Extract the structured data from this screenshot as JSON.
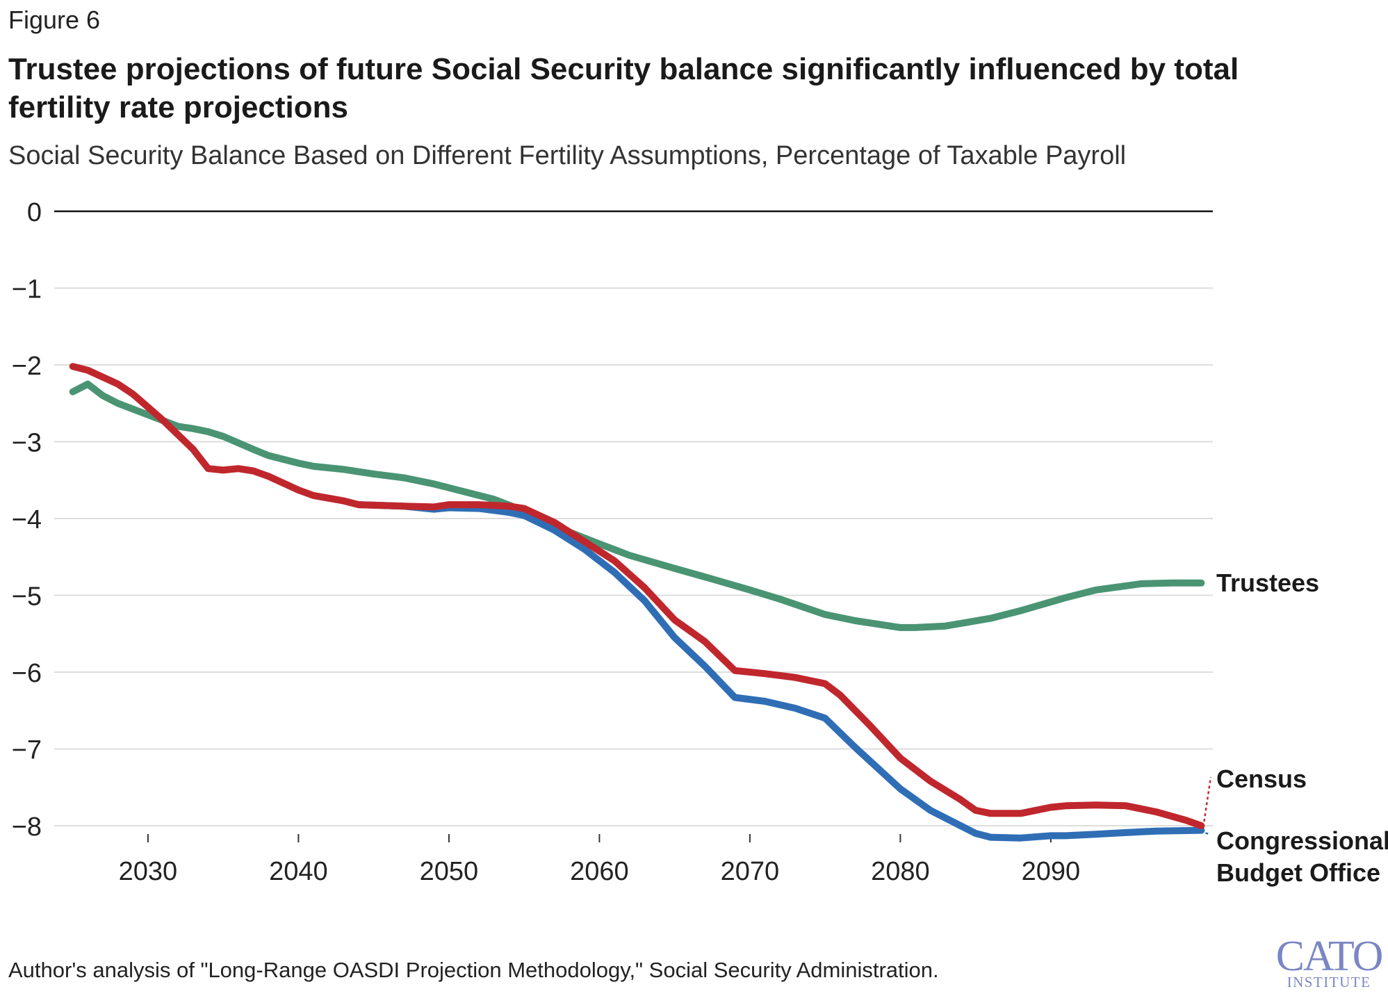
{
  "figure_label": "Figure 6",
  "title": "Trustee projections of future Social Security balance significantly influenced by total fertility rate projections",
  "subtitle": "Social Security Balance Based on Different Fertility Assumptions, Percentage of Taxable Payroll",
  "source": "Author's analysis of \"Long-Range OASDI Projection Methodology,\" Social Security Administration.",
  "logo": {
    "line1": "CATO",
    "line2": "INSTITUTE"
  },
  "colors": {
    "trustees": "#4a9474",
    "census": "#c0272d",
    "cbo": "#2f6eb5",
    "grid": "#dddddd",
    "zero": "#111111",
    "logo": "#7b86c4"
  },
  "chart_data": {
    "type": "line",
    "title": "Trustee projections of future Social Security balance significantly influenced by total fertility rate projections",
    "subtitle": "Social Security Balance Based on Different Fertility Assumptions, Percentage of Taxable Payroll",
    "xlabel": "",
    "ylabel": "",
    "xlim": [
      2024,
      2100
    ],
    "ylim": [
      -8.2,
      0
    ],
    "x_ticks": [
      2030,
      2040,
      2050,
      2060,
      2070,
      2080,
      2090
    ],
    "y_ticks": [
      0,
      -1,
      -2,
      -3,
      -4,
      -5,
      -6,
      -7,
      -8
    ],
    "x_tick_labels": [
      "2030",
      "2040",
      "2050",
      "2060",
      "2070",
      "2080",
      "2090"
    ],
    "y_tick_labels": [
      "0",
      "−1",
      "−2",
      "−3",
      "−4",
      "−5",
      "−6",
      "−7",
      "−8"
    ],
    "grid": true,
    "legend": "direct labels at line ends (right)",
    "series": [
      {
        "name": "Trustees",
        "color": "#4a9474",
        "points": [
          [
            2025,
            -2.35
          ],
          [
            2026,
            -2.25
          ],
          [
            2027,
            -2.4
          ],
          [
            2028,
            -2.5
          ],
          [
            2030,
            -2.65
          ],
          [
            2032,
            -2.8
          ],
          [
            2033,
            -2.83
          ],
          [
            2034,
            -2.87
          ],
          [
            2035,
            -2.93
          ],
          [
            2037,
            -3.1
          ],
          [
            2038,
            -3.18
          ],
          [
            2040,
            -3.28
          ],
          [
            2041,
            -3.32
          ],
          [
            2043,
            -3.36
          ],
          [
            2045,
            -3.42
          ],
          [
            2047,
            -3.47
          ],
          [
            2049,
            -3.55
          ],
          [
            2050,
            -3.6
          ],
          [
            2051,
            -3.65
          ],
          [
            2053,
            -3.75
          ],
          [
            2055,
            -3.9
          ],
          [
            2057,
            -4.1
          ],
          [
            2060,
            -4.33
          ],
          [
            2062,
            -4.48
          ],
          [
            2065,
            -4.65
          ],
          [
            2067,
            -4.76
          ],
          [
            2070,
            -4.93
          ],
          [
            2072,
            -5.05
          ],
          [
            2075,
            -5.25
          ],
          [
            2077,
            -5.33
          ],
          [
            2080,
            -5.42
          ],
          [
            2081,
            -5.42
          ],
          [
            2083,
            -5.4
          ],
          [
            2086,
            -5.3
          ],
          [
            2088,
            -5.2
          ],
          [
            2091,
            -5.03
          ],
          [
            2093,
            -4.93
          ],
          [
            2096,
            -4.85
          ],
          [
            2098,
            -4.84
          ],
          [
            2100,
            -4.84
          ]
        ]
      },
      {
        "name": "Census",
        "color": "#c0272d",
        "points": [
          [
            2025,
            -2.02
          ],
          [
            2026,
            -2.07
          ],
          [
            2028,
            -2.25
          ],
          [
            2029,
            -2.38
          ],
          [
            2030,
            -2.55
          ],
          [
            2031,
            -2.72
          ],
          [
            2033,
            -3.1
          ],
          [
            2034,
            -3.35
          ],
          [
            2035,
            -3.37
          ],
          [
            2036,
            -3.35
          ],
          [
            2037,
            -3.38
          ],
          [
            2038,
            -3.45
          ],
          [
            2040,
            -3.63
          ],
          [
            2041,
            -3.7
          ],
          [
            2043,
            -3.77
          ],
          [
            2044,
            -3.82
          ],
          [
            2047,
            -3.84
          ],
          [
            2049,
            -3.85
          ],
          [
            2050,
            -3.82
          ],
          [
            2052,
            -3.82
          ],
          [
            2054,
            -3.84
          ],
          [
            2055,
            -3.87
          ],
          [
            2057,
            -4.05
          ],
          [
            2059,
            -4.3
          ],
          [
            2061,
            -4.55
          ],
          [
            2063,
            -4.9
          ],
          [
            2065,
            -5.32
          ],
          [
            2067,
            -5.6
          ],
          [
            2069,
            -5.98
          ],
          [
            2071,
            -6.02
          ],
          [
            2073,
            -6.07
          ],
          [
            2075,
            -6.15
          ],
          [
            2076,
            -6.3
          ],
          [
            2078,
            -6.7
          ],
          [
            2080,
            -7.12
          ],
          [
            2082,
            -7.42
          ],
          [
            2084,
            -7.66
          ],
          [
            2085,
            -7.8
          ],
          [
            2086,
            -7.84
          ],
          [
            2088,
            -7.84
          ],
          [
            2090,
            -7.76
          ],
          [
            2091,
            -7.74
          ],
          [
            2093,
            -7.73
          ],
          [
            2095,
            -7.74
          ],
          [
            2097,
            -7.82
          ],
          [
            2099,
            -7.93
          ],
          [
            2100,
            -8.0
          ]
        ]
      },
      {
        "name": "Congressional Budget Office",
        "color": "#2f6eb5",
        "points": [
          [
            2044,
            -3.82
          ],
          [
            2047,
            -3.84
          ],
          [
            2049,
            -3.88
          ],
          [
            2050,
            -3.86
          ],
          [
            2052,
            -3.87
          ],
          [
            2054,
            -3.92
          ],
          [
            2055,
            -3.96
          ],
          [
            2057,
            -4.15
          ],
          [
            2059,
            -4.4
          ],
          [
            2061,
            -4.7
          ],
          [
            2063,
            -5.07
          ],
          [
            2065,
            -5.55
          ],
          [
            2067,
            -5.92
          ],
          [
            2069,
            -6.33
          ],
          [
            2071,
            -6.38
          ],
          [
            2073,
            -6.47
          ],
          [
            2075,
            -6.6
          ],
          [
            2077,
            -6.98
          ],
          [
            2080,
            -7.52
          ],
          [
            2082,
            -7.8
          ],
          [
            2084,
            -8.0
          ],
          [
            2085,
            -8.1
          ],
          [
            2086,
            -8.15
          ],
          [
            2088,
            -8.16
          ],
          [
            2090,
            -8.13
          ],
          [
            2091,
            -8.13
          ],
          [
            2093,
            -8.11
          ],
          [
            2095,
            -8.09
          ],
          [
            2097,
            -8.07
          ],
          [
            2100,
            -8.06
          ]
        ]
      }
    ],
    "labels": {
      "trustees": "Trustees",
      "census": "Census",
      "cbo_line1": "Congressional",
      "cbo_line2": "Budget Office"
    }
  }
}
